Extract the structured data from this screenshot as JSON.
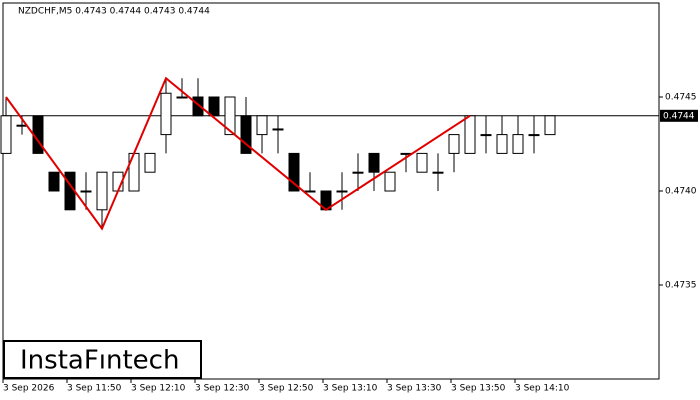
{
  "chart_data": {
    "type": "candlestick",
    "title": "NZDCHF,M5  0.4743 0.4744 0.4743 0.4744",
    "logo": "InstaFıntech",
    "categories": [
      "3 Sep 2026",
      null,
      null,
      null,
      "3 Sep 11:50",
      null,
      null,
      null,
      "3 Sep 12:10",
      null,
      null,
      null,
      "3 Sep 12:30",
      null,
      null,
      null,
      "3 Sep 12:50",
      null,
      null,
      null,
      "3 Sep 13:10",
      null,
      null,
      null,
      "3 Sep 13:30",
      null,
      null,
      null,
      "3 Sep 13:50",
      null,
      null,
      null,
      "3 Sep 14:10",
      null,
      null
    ],
    "open": [
      0.4742,
      0.47435,
      0.4744,
      0.4741,
      0.4741,
      0.474,
      0.4739,
      0.474,
      0.474,
      0.4741,
      0.4743,
      0.4745,
      0.4745,
      0.4745,
      0.4743,
      0.4744,
      0.4743,
      0.47433,
      0.4742,
      0.474,
      0.474,
      0.474,
      0.4741,
      0.4742,
      0.474,
      0.4742,
      0.4741,
      0.4741,
      0.4742,
      0.4742,
      0.4743,
      0.4742,
      0.4742,
      0.4743,
      0.4743
    ],
    "high": [
      0.4745,
      0.4744,
      0.4744,
      0.4741,
      0.4741,
      0.4741,
      0.4741,
      0.4741,
      0.4742,
      0.4742,
      0.4746,
      0.4746,
      0.4746,
      0.4745,
      0.4745,
      0.4745,
      0.4744,
      0.4744,
      0.4742,
      0.4741,
      0.474,
      0.4741,
      0.4742,
      0.4742,
      0.4741,
      0.4742,
      0.4742,
      0.4742,
      0.4743,
      0.4744,
      0.4744,
      0.4744,
      0.4744,
      0.4744,
      0.4744
    ],
    "low": [
      0.4742,
      0.4743,
      0.4742,
      0.474,
      0.4739,
      0.4739,
      0.4738,
      0.474,
      0.474,
      0.4741,
      0.4742,
      0.4745,
      0.4744,
      0.4744,
      0.4743,
      0.4742,
      0.4742,
      0.4742,
      0.474,
      0.474,
      0.4739,
      0.4739,
      0.474,
      0.474,
      0.474,
      0.4741,
      0.4741,
      0.474,
      0.4741,
      0.4742,
      0.4742,
      0.4742,
      0.4742,
      0.4742,
      0.4743
    ],
    "close": [
      0.4744,
      0.47435,
      0.4742,
      0.474,
      0.4739,
      0.474,
      0.4741,
      0.4741,
      0.4742,
      0.4742,
      0.47452,
      0.4745,
      0.4744,
      0.4744,
      0.4745,
      0.4742,
      0.4744,
      0.47433,
      0.474,
      0.474,
      0.4739,
      0.474,
      0.4741,
      0.4741,
      0.4741,
      0.4742,
      0.4742,
      0.4741,
      0.4743,
      0.4744,
      0.4743,
      0.4743,
      0.4743,
      0.4743,
      0.4744
    ],
    "pattern": {
      "color": "#e00000",
      "x": [
        0,
        6,
        10,
        20,
        29
      ],
      "values": [
        0.4745,
        0.4738,
        0.4746,
        0.4739,
        0.4744
      ]
    },
    "last_price": 0.4744,
    "ylim": [
      0.473,
      0.475
    ],
    "yticks": [
      0.4735,
      {
        "value": 0.474,
        "label": "0.4740"
      },
      0.4745
    ]
  }
}
